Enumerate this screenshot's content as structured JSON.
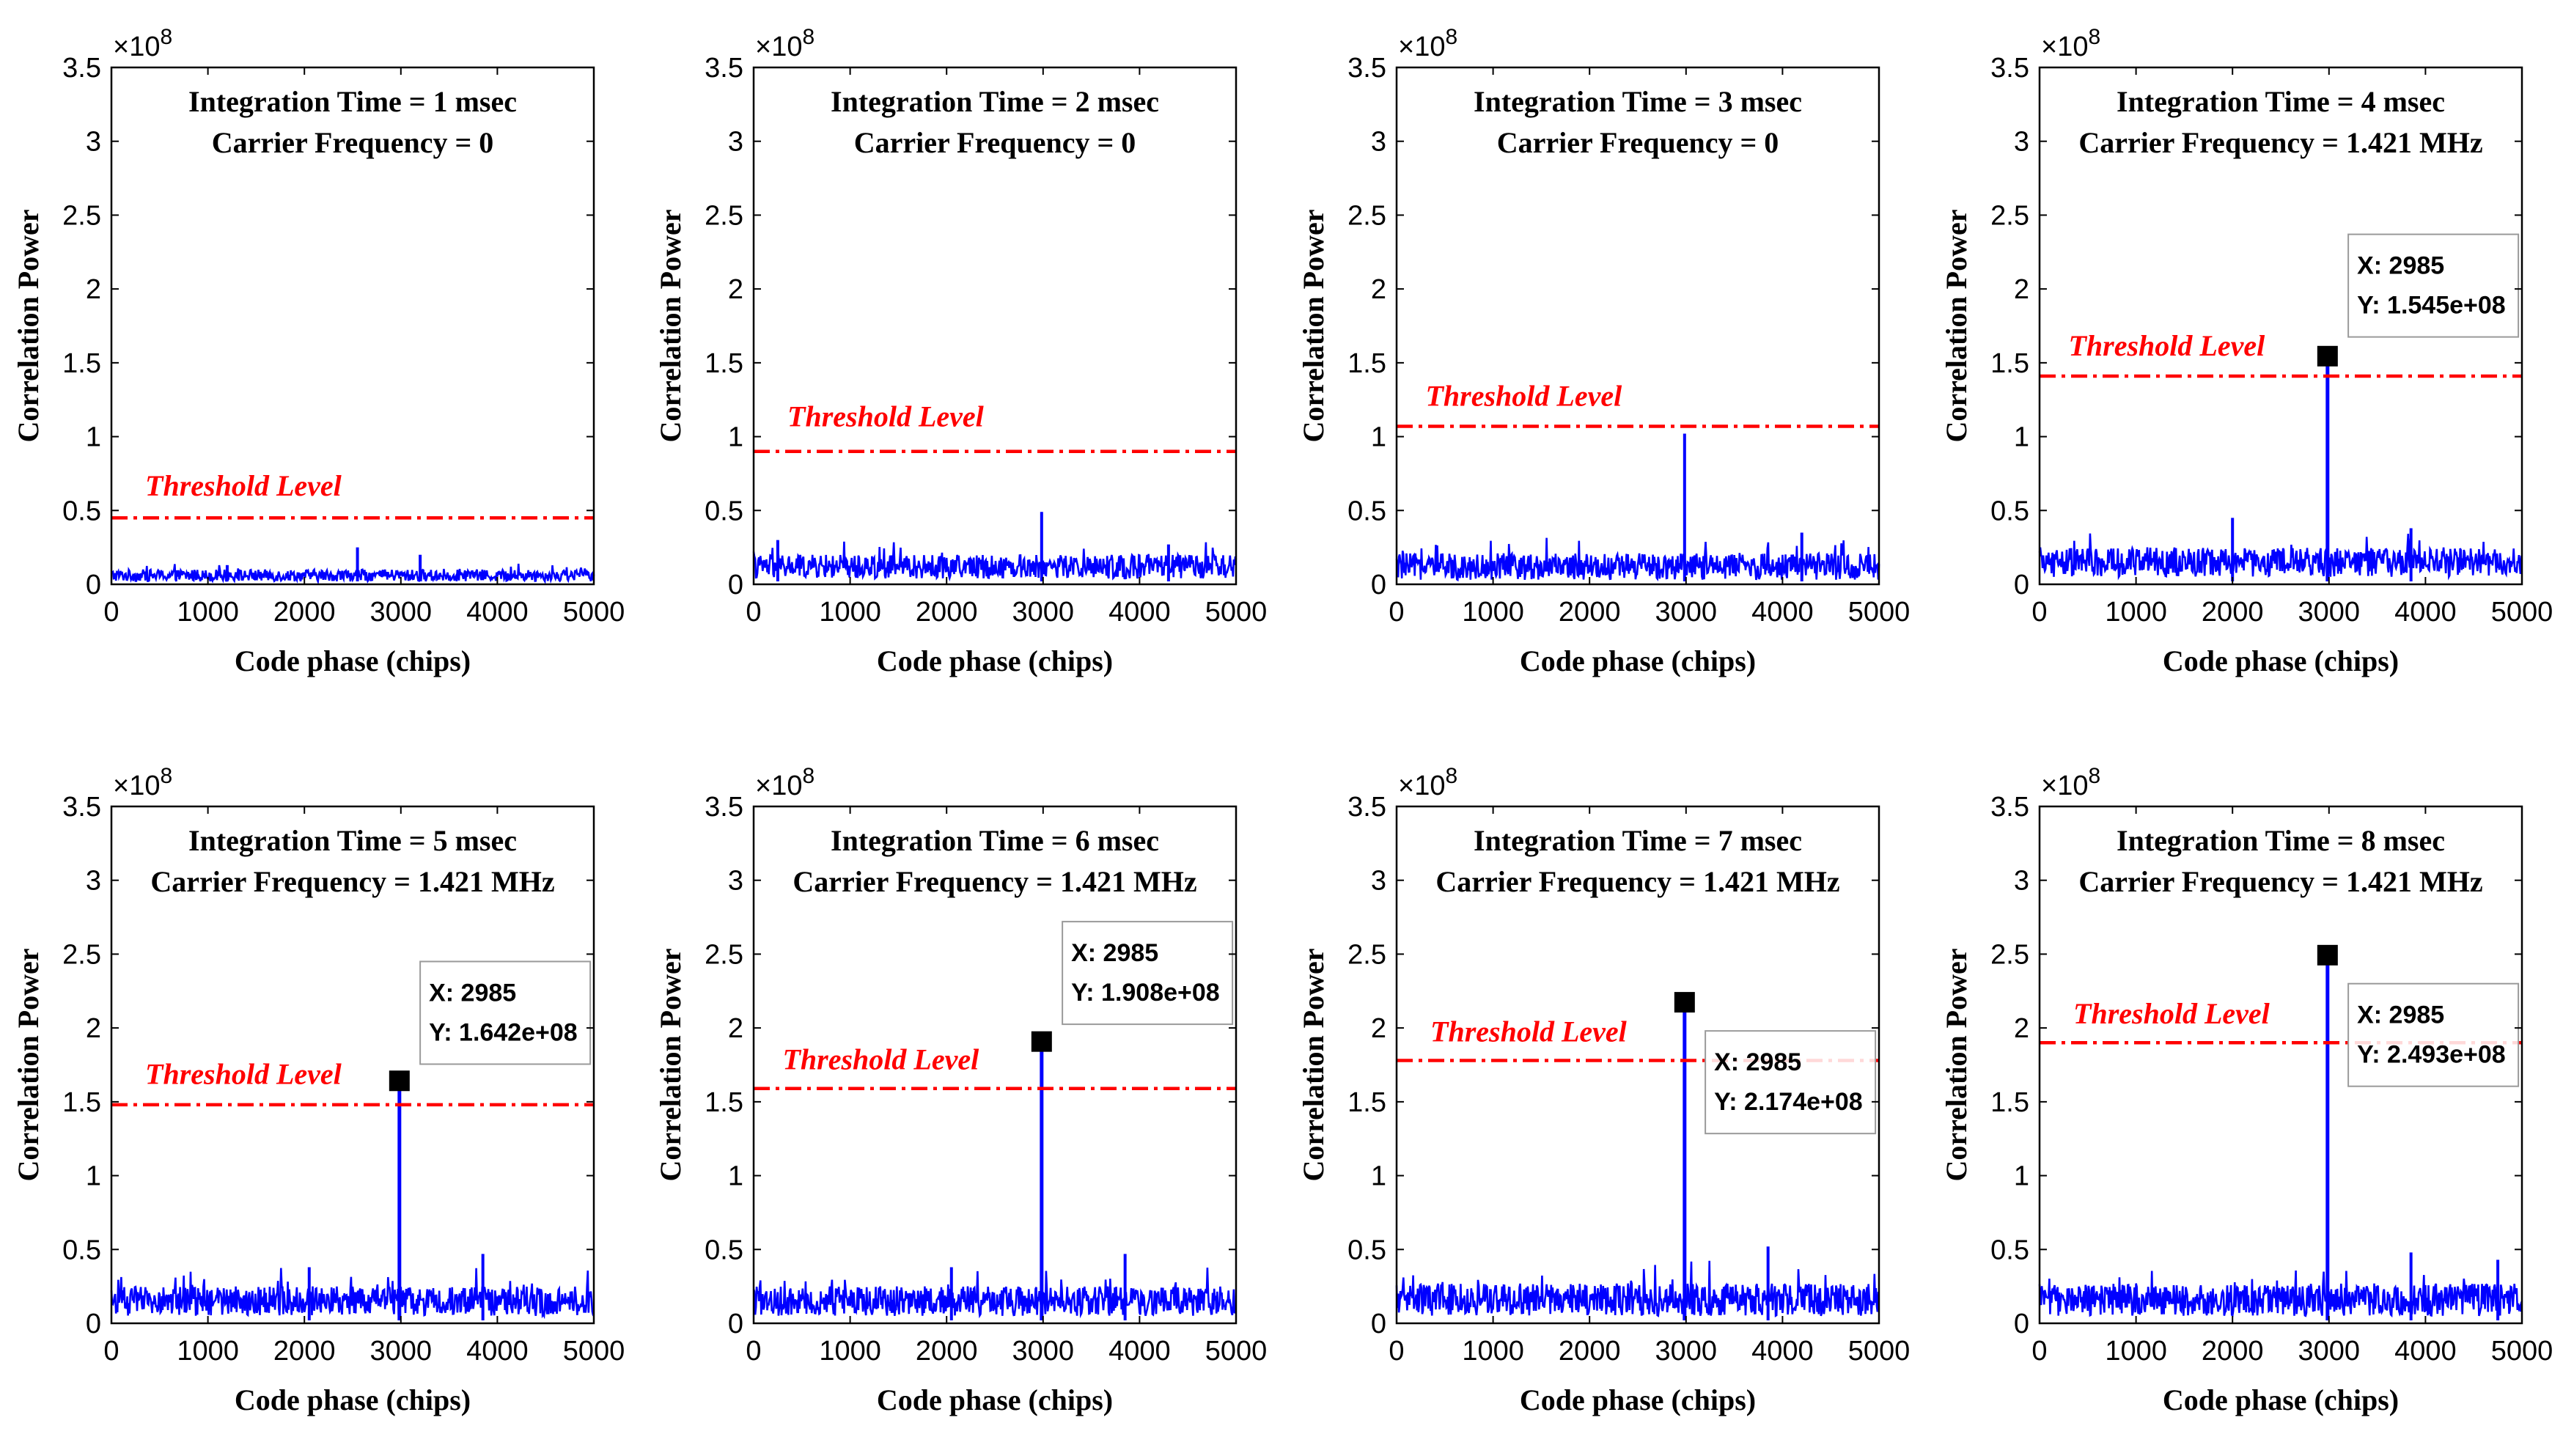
{
  "colors": {
    "signal": "#0000ff",
    "threshold": "#ff0000",
    "axis": "#000000",
    "marker": "#000000",
    "tooltip_border": "#9a9a9a",
    "background": "#ffffff"
  },
  "chart_data": [
    {
      "type": "line",
      "title": [
        "Integration Time = 1 msec",
        "Carrier Frequency = 0"
      ],
      "xlabel": "Code phase (chips)",
      "ylabel": "Correlation Power",
      "exponent_label": "×10^8",
      "xlim": [
        0,
        5000
      ],
      "ylim": [
        0,
        3.5
      ],
      "xticks": [
        0,
        1000,
        2000,
        3000,
        4000,
        5000
      ],
      "xtick_labels": [
        "0",
        "1000",
        "2000",
        "3000",
        "4000",
        "5000"
      ],
      "yticks": [
        0,
        0.5,
        1,
        1.5,
        2,
        2.5,
        3,
        3.5
      ],
      "ytick_labels": [
        "0",
        "0.5",
        "1",
        "1.5",
        "2",
        "2.5",
        "3",
        "3.5"
      ],
      "noise_floor": 0.06,
      "noise_spread": 0.04,
      "spikes": [
        {
          "x": 1200,
          "y": 0.13
        },
        {
          "x": 2550,
          "y": 0.25
        },
        {
          "x": 3200,
          "y": 0.2
        }
      ],
      "threshold": {
        "y": 0.45,
        "label": "Threshold Level",
        "label_x": 350,
        "label_y": 0.6
      },
      "peak": null
    },
    {
      "type": "line",
      "title": [
        "Integration Time = 2 msec",
        "Carrier Frequency = 0"
      ],
      "xlabel": "Code phase (chips)",
      "ylabel": "Correlation Power",
      "exponent_label": "×10^8",
      "xlim": [
        0,
        5000
      ],
      "ylim": [
        0,
        3.5
      ],
      "xticks": [
        0,
        1000,
        2000,
        3000,
        4000,
        5000
      ],
      "xtick_labels": [
        "0",
        "1000",
        "2000",
        "3000",
        "4000",
        "5000"
      ],
      "yticks": [
        0,
        0.5,
        1,
        1.5,
        2,
        2.5,
        3,
        3.5
      ],
      "ytick_labels": [
        "0",
        "0.5",
        "1",
        "1.5",
        "2",
        "2.5",
        "3",
        "3.5"
      ],
      "noise_floor": 0.12,
      "noise_spread": 0.08,
      "spikes": [
        {
          "x": 250,
          "y": 0.3
        },
        {
          "x": 2985,
          "y": 0.49
        },
        {
          "x": 4300,
          "y": 0.27
        }
      ],
      "threshold": {
        "y": 0.9,
        "label": "Threshold Level",
        "label_x": 350,
        "label_y": 1.07
      },
      "peak": null
    },
    {
      "type": "line",
      "title": [
        "Integration Time = 3 msec",
        "Carrier Frequency = 0"
      ],
      "xlabel": "Code phase (chips)",
      "ylabel": "Correlation Power",
      "exponent_label": "×10^8",
      "xlim": [
        0,
        5000
      ],
      "ylim": [
        0,
        3.5
      ],
      "xticks": [
        0,
        1000,
        2000,
        3000,
        4000,
        5000
      ],
      "xtick_labels": [
        "0",
        "1000",
        "2000",
        "3000",
        "4000",
        "5000"
      ],
      "yticks": [
        0,
        0.5,
        1,
        1.5,
        2,
        2.5,
        3,
        3.5
      ],
      "ytick_labels": [
        "0",
        "0.5",
        "1",
        "1.5",
        "2",
        "2.5",
        "3",
        "3.5"
      ],
      "noise_floor": 0.12,
      "noise_spread": 0.09,
      "spikes": [
        {
          "x": 2985,
          "y": 1.02
        },
        {
          "x": 4200,
          "y": 0.35
        }
      ],
      "threshold": {
        "y": 1.07,
        "label": "Threshold Level",
        "label_x": 300,
        "label_y": 1.21
      },
      "peak": null
    },
    {
      "type": "line",
      "title": [
        "Integration Time = 4 msec",
        "Carrier Frequency = 1.421 MHz"
      ],
      "xlabel": "Code phase (chips)",
      "ylabel": "Correlation Power",
      "exponent_label": "×10^8",
      "xlim": [
        0,
        5000
      ],
      "ylim": [
        0,
        3.5
      ],
      "xticks": [
        0,
        1000,
        2000,
        3000,
        4000,
        5000
      ],
      "xtick_labels": [
        "0",
        "1000",
        "2000",
        "3000",
        "4000",
        "5000"
      ],
      "yticks": [
        0,
        0.5,
        1,
        1.5,
        2,
        2.5,
        3,
        3.5
      ],
      "ytick_labels": [
        "0",
        "0.5",
        "1",
        "1.5",
        "2",
        "2.5",
        "3",
        "3.5"
      ],
      "noise_floor": 0.15,
      "noise_spread": 0.1,
      "spikes": [
        {
          "x": 2000,
          "y": 0.45
        },
        {
          "x": 3850,
          "y": 0.38
        }
      ],
      "threshold": {
        "y": 1.41,
        "label": "Threshold Level",
        "label_x": 300,
        "label_y": 1.55
      },
      "peak": {
        "x": 2985,
        "y": 1.545,
        "tip_x_text": "X: 2985",
        "tip_y_text": "Y: 1.545e+08",
        "tip_anchor_x": 3200,
        "tip_anchor_y": 2.37
      }
    },
    {
      "type": "line",
      "title": [
        "Integration Time = 5 msec",
        "Carrier Frequency = 1.421 MHz"
      ],
      "xlabel": "Code phase (chips)",
      "ylabel": "Correlation Power",
      "exponent_label": "×10^8",
      "xlim": [
        0,
        5000
      ],
      "ylim": [
        0,
        3.5
      ],
      "xticks": [
        0,
        1000,
        2000,
        3000,
        4000,
        5000
      ],
      "xtick_labels": [
        "0",
        "1000",
        "2000",
        "3000",
        "4000",
        "5000"
      ],
      "yticks": [
        0,
        0.5,
        1,
        1.5,
        2,
        2.5,
        3,
        3.5
      ],
      "ytick_labels": [
        "0",
        "0.5",
        "1",
        "1.5",
        "2",
        "2.5",
        "3",
        "3.5"
      ],
      "noise_floor": 0.15,
      "noise_spread": 0.1,
      "spikes": [
        {
          "x": 2050,
          "y": 0.38
        },
        {
          "x": 3850,
          "y": 0.47
        }
      ],
      "threshold": {
        "y": 1.48,
        "label": "Threshold Level",
        "label_x": 350,
        "label_y": 1.62
      },
      "peak": {
        "x": 2985,
        "y": 1.642,
        "tip_x_text": "X: 2985",
        "tip_y_text": "Y: 1.642e+08",
        "tip_anchor_x": 3200,
        "tip_anchor_y": 2.45
      }
    },
    {
      "type": "line",
      "title": [
        "Integration Time = 6 msec",
        "Carrier Frequency = 1.421 MHz"
      ],
      "xlabel": "Code phase (chips)",
      "ylabel": "Correlation Power",
      "exponent_label": "×10^8",
      "xlim": [
        0,
        5000
      ],
      "ylim": [
        0,
        3.5
      ],
      "xticks": [
        0,
        1000,
        2000,
        3000,
        4000,
        5000
      ],
      "xtick_labels": [
        "0",
        "1000",
        "2000",
        "3000",
        "4000",
        "5000"
      ],
      "yticks": [
        0,
        0.5,
        1,
        1.5,
        2,
        2.5,
        3,
        3.5
      ],
      "ytick_labels": [
        "0",
        "0.5",
        "1",
        "1.5",
        "2",
        "2.5",
        "3",
        "3.5"
      ],
      "noise_floor": 0.15,
      "noise_spread": 0.1,
      "spikes": [
        {
          "x": 2050,
          "y": 0.38
        },
        {
          "x": 3850,
          "y": 0.47
        }
      ],
      "threshold": {
        "y": 1.59,
        "label": "Threshold Level",
        "label_x": 300,
        "label_y": 1.72
      },
      "peak": {
        "x": 2985,
        "y": 1.908,
        "tip_x_text": "X: 2985",
        "tip_y_text": "Y: 1.908e+08",
        "tip_anchor_x": 3200,
        "tip_anchor_y": 2.72
      }
    },
    {
      "type": "line",
      "title": [
        "Integration Time = 7 msec",
        "Carrier Frequency = 1.421 MHz"
      ],
      "xlabel": "Code phase (chips)",
      "ylabel": "Correlation Power",
      "exponent_label": "×10^8",
      "xlim": [
        0,
        5000
      ],
      "ylim": [
        0,
        3.5
      ],
      "xticks": [
        0,
        1000,
        2000,
        3000,
        4000,
        5000
      ],
      "xtick_labels": [
        "0",
        "1000",
        "2000",
        "3000",
        "4000",
        "5000"
      ],
      "yticks": [
        0,
        0.5,
        1,
        1.5,
        2,
        2.5,
        3,
        3.5
      ],
      "ytick_labels": [
        "0",
        "0.5",
        "1",
        "1.5",
        "2",
        "2.5",
        "3",
        "3.5"
      ],
      "noise_floor": 0.16,
      "noise_spread": 0.11,
      "spikes": [
        {
          "x": 3850,
          "y": 0.52
        }
      ],
      "threshold": {
        "y": 1.78,
        "label": "Threshold Level",
        "label_x": 350,
        "label_y": 1.91
      },
      "peak": {
        "x": 2985,
        "y": 2.174,
        "tip_x_text": "X: 2985",
        "tip_y_text": "Y: 2.174e+08",
        "tip_anchor_x": 3200,
        "tip_anchor_y": 1.98
      }
    },
    {
      "type": "line",
      "title": [
        "Integration Time = 8 msec",
        "Carrier Frequency = 1.421 MHz"
      ],
      "xlabel": "Code phase (chips)",
      "ylabel": "Correlation Power",
      "exponent_label": "×10^8",
      "xlim": [
        0,
        5000
      ],
      "ylim": [
        0,
        3.5
      ],
      "xticks": [
        0,
        1000,
        2000,
        3000,
        4000,
        5000
      ],
      "xtick_labels": [
        "0",
        "1000",
        "2000",
        "3000",
        "4000",
        "5000"
      ],
      "yticks": [
        0,
        0.5,
        1,
        1.5,
        2,
        2.5,
        3,
        3.5
      ],
      "ytick_labels": [
        "0",
        "0.5",
        "1",
        "1.5",
        "2",
        "2.5",
        "3",
        "3.5"
      ],
      "noise_floor": 0.16,
      "noise_spread": 0.11,
      "spikes": [
        {
          "x": 3850,
          "y": 0.48
        },
        {
          "x": 4750,
          "y": 0.43
        }
      ],
      "threshold": {
        "y": 1.9,
        "label": "Threshold Level",
        "label_x": 350,
        "label_y": 2.03
      },
      "peak": {
        "x": 2985,
        "y": 2.493,
        "tip_x_text": "X: 2985",
        "tip_y_text": "Y: 2.493e+08",
        "tip_anchor_x": 3200,
        "tip_anchor_y": 2.3
      }
    }
  ]
}
